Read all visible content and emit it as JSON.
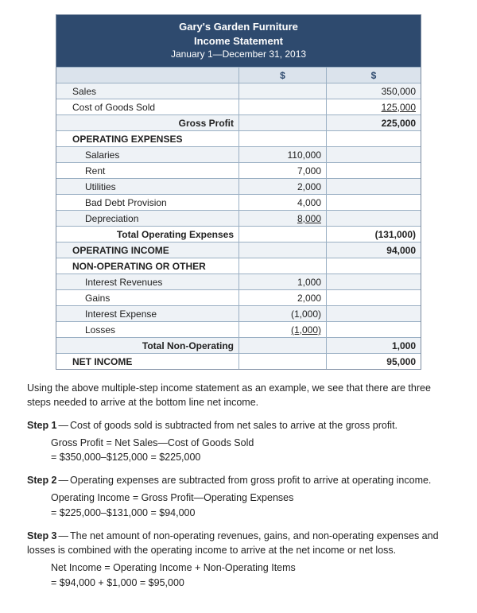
{
  "header": {
    "company": "Gary's Garden Furniture",
    "title": "Income Statement",
    "period": "January 1—December 31, 2013"
  },
  "currency_symbol": "$",
  "rows": [
    {
      "label": "Sales",
      "c1_class": "indent1",
      "c3": "350,000",
      "alt": 1
    },
    {
      "label": "Cost of Goods Sold",
      "c1_class": "indent1",
      "c3": "125,000",
      "c3_class": "under",
      "alt": 0
    },
    {
      "label": "Gross Profit",
      "c1_class": "indent2 rlabel bold",
      "c3": "225,000",
      "c3_class": "bold",
      "alt": 1
    },
    {
      "label": "OPERATING EXPENSES",
      "c1_class": "indent1 sect",
      "alt": 0
    },
    {
      "label": "Salaries",
      "c1_class": "indent2",
      "c2": "110,000",
      "alt": 1
    },
    {
      "label": "Rent",
      "c1_class": "indent2",
      "c2": "7,000",
      "alt": 0
    },
    {
      "label": "Utilities",
      "c1_class": "indent2",
      "c2": "2,000",
      "alt": 1
    },
    {
      "label": "Bad Debt Provision",
      "c1_class": "indent2",
      "c2": "4,000",
      "alt": 0
    },
    {
      "label": "Depreciation",
      "c1_class": "indent2",
      "c2": "8,000",
      "c2_class": "under",
      "alt": 1
    },
    {
      "label": "Total Operating Expenses",
      "c1_class": "indent2 rlabel bold",
      "c3": "(131,000)",
      "c3_class": "bold",
      "alt": 0
    },
    {
      "label": "OPERATING INCOME",
      "c1_class": "indent1 sect",
      "c3": "94,000",
      "c3_class": "bold",
      "alt": 1
    },
    {
      "label": "NON-OPERATING OR OTHER",
      "c1_class": "indent1 sect",
      "alt": 0
    },
    {
      "label": "Interest Revenues",
      "c1_class": "indent2",
      "c2": "1,000",
      "alt": 1
    },
    {
      "label": "Gains",
      "c1_class": "indent2",
      "c2": "2,000",
      "alt": 0
    },
    {
      "label": "Interest Expense",
      "c1_class": "indent2",
      "c2": "(1,000)",
      "alt": 1
    },
    {
      "label": "Losses",
      "c1_class": "indent2",
      "c2": "(1,000)",
      "c2_class": "under",
      "alt": 0
    },
    {
      "label": "Total Non-Operating",
      "c1_class": "indent2 rlabel bold",
      "c3": "1,000",
      "c3_class": "bold",
      "alt": 1
    },
    {
      "label": "NET INCOME",
      "c1_class": "indent1 sect",
      "c3": "95,000",
      "c3_class": "bold",
      "alt": 0
    }
  ],
  "intro": "Using the above multiple-step income statement as an example, we see that there are three steps needed to arrive at the bottom line net income.",
  "steps": [
    {
      "label": "Step 1",
      "text": "Cost of goods sold is subtracted from net sales to arrive at the gross profit.",
      "calc1": "Gross Profit = Net Sales—Cost of Goods Sold",
      "calc2": "= $350,000–$125,000 = $225,000"
    },
    {
      "label": "Step 2",
      "text": "Operating expenses are subtracted from gross profit to arrive at operating income.",
      "calc1": "Operating Income = Gross Profit—Operating Expenses",
      "calc2": "= $225,000–$131,000 = $94,000"
    },
    {
      "label": "Step 3",
      "text": "The net amount of non-operating revenues, gains, and non-operating expenses and losses is combined with the operating income to arrive at the net income or net loss.",
      "calc1": "Net Income = Operating Income + Non-Operating Items",
      "calc2": "= $94,000 + $1,000 = $95,000"
    }
  ],
  "colors": {
    "header_bg": "#2e4a6e",
    "border": "#9bb0c4",
    "alt_bg": "#eef2f6",
    "dollar_bg": "#dbe3ec"
  }
}
